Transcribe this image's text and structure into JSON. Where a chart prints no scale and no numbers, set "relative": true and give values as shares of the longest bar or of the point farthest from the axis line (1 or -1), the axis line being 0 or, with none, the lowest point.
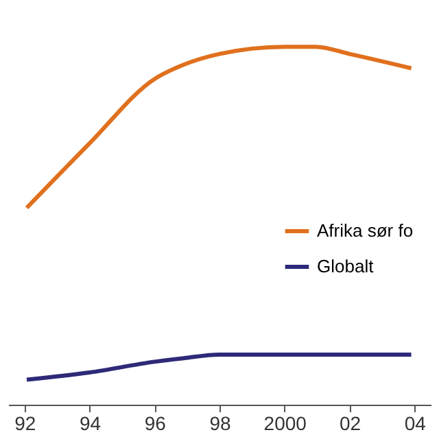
{
  "chart_data": {
    "type": "line",
    "relative": true,
    "x": [
      1992.07,
      1994,
      1996,
      1996.9,
      1998,
      2000,
      2000.96,
      2002,
      2003.9
    ],
    "series": [
      {
        "name": "Afrika sør fo",
        "color": "#e0701e",
        "values": [
          0.55,
          0.73,
          0.91,
          0.95,
          0.98,
          1.0,
          1.0,
          0.98,
          0.94
        ]
      },
      {
        "name": "Globalt",
        "color": "#2e2a78",
        "values": [
          0.07,
          0.09,
          0.12,
          0.13,
          0.14,
          0.14,
          0.14,
          0.14,
          0.14
        ]
      }
    ],
    "xlim": [
      1991.5,
      2004.5
    ],
    "xticks": [
      {
        "value": 1992,
        "label": "92"
      },
      {
        "value": 1994,
        "label": "94"
      },
      {
        "value": 1996,
        "label": "96"
      },
      {
        "value": 1998,
        "label": "98"
      },
      2000,
      {
        "value": 2002,
        "label": "02"
      },
      {
        "value": 2004,
        "label": "04"
      }
    ],
    "grid": false,
    "legend": "right",
    "line_style": "solid",
    "marker": "none"
  }
}
